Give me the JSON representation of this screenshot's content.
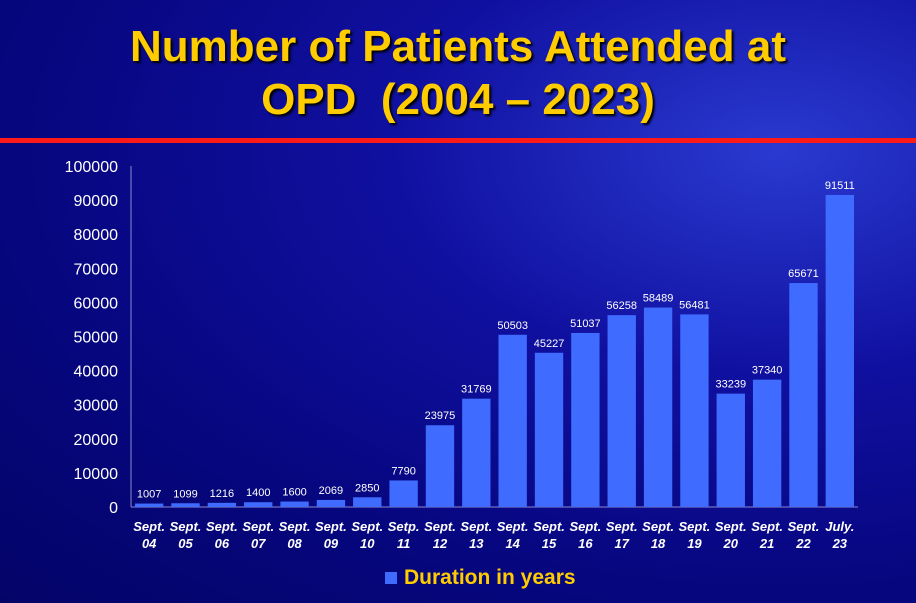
{
  "chart_data": {
    "type": "bar",
    "title": [
      "Number of Patients Attended at",
      "OPD  (2004 – 2023)"
    ],
    "categories": [
      [
        "Sept.",
        "04"
      ],
      [
        "Sept.",
        "05"
      ],
      [
        "Sept.",
        "06"
      ],
      [
        "Sept.",
        "07"
      ],
      [
        "Sept.",
        "08"
      ],
      [
        "Sept.",
        "09"
      ],
      [
        "Sept.",
        "10"
      ],
      [
        "Setp.",
        "11"
      ],
      [
        "Sept.",
        "12"
      ],
      [
        "Sept.",
        "13"
      ],
      [
        "Sept.",
        "14"
      ],
      [
        "Sept.",
        "15"
      ],
      [
        "Sept.",
        "16"
      ],
      [
        "Sept.",
        "17"
      ],
      [
        "Sept.",
        "18"
      ],
      [
        "Sept.",
        "19"
      ],
      [
        "Sept.",
        "20"
      ],
      [
        "Sept.",
        "21"
      ],
      [
        "Sept.",
        "22"
      ],
      [
        "July.",
        "23"
      ]
    ],
    "values": [
      1007,
      1099,
      1216,
      1400,
      1600,
      2069,
      2850,
      7790,
      23975,
      31769,
      50503,
      45227,
      51037,
      56258,
      58489,
      56481,
      33239,
      37340,
      65671,
      91511
    ],
    "ylim": [
      0,
      100000
    ],
    "yticks": [
      0,
      10000,
      20000,
      30000,
      40000,
      50000,
      60000,
      70000,
      80000,
      90000,
      100000
    ],
    "legend": {
      "label": "Duration in years",
      "placement": "bottom"
    },
    "xlabel": "",
    "ylabel": "",
    "bar_color": "#3f6cff",
    "grid": false
  }
}
